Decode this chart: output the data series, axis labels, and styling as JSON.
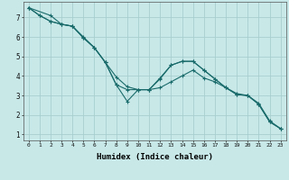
{
  "title": "",
  "xlabel": "Humidex (Indice chaleur)",
  "bg_color": "#c8e8e8",
  "grid_color": "#a8cece",
  "line_color": "#1a6b6b",
  "xlim": [
    -0.5,
    23.5
  ],
  "ylim": [
    0.7,
    7.8
  ],
  "xticks": [
    0,
    1,
    2,
    3,
    4,
    5,
    6,
    7,
    8,
    9,
    10,
    11,
    12,
    13,
    14,
    15,
    16,
    17,
    18,
    19,
    20,
    21,
    22,
    23
  ],
  "yticks": [
    1,
    2,
    3,
    4,
    5,
    6,
    7
  ],
  "line1_x": [
    0,
    1,
    2,
    3,
    4,
    5,
    6,
    7,
    8,
    9,
    10,
    11,
    12,
    13,
    14,
    15,
    16,
    17,
    18,
    19,
    20,
    21,
    22,
    23
  ],
  "line1_y": [
    7.5,
    7.1,
    6.8,
    6.65,
    6.55,
    5.95,
    5.45,
    4.7,
    3.55,
    3.3,
    3.3,
    3.3,
    3.9,
    4.55,
    4.75,
    4.75,
    4.3,
    3.85,
    3.4,
    3.05,
    3.0,
    2.55,
    1.65,
    1.3
  ],
  "line2_x": [
    0,
    2,
    3,
    4,
    5,
    6,
    7,
    8,
    9,
    10,
    11,
    12,
    13,
    14,
    15,
    16,
    17,
    18,
    19,
    20,
    21,
    22,
    23
  ],
  "line2_y": [
    7.5,
    7.1,
    6.65,
    6.55,
    6.0,
    5.45,
    4.7,
    3.55,
    2.7,
    3.3,
    3.3,
    3.85,
    4.55,
    4.75,
    4.75,
    4.3,
    3.85,
    3.4,
    3.05,
    3.0,
    2.55,
    1.65,
    1.3
  ],
  "line3_x": [
    0,
    1,
    2,
    3,
    4,
    5,
    6,
    7,
    8,
    9,
    10,
    11,
    12,
    13,
    14,
    15,
    16,
    17,
    18,
    19,
    20,
    21,
    22,
    23
  ],
  "line3_y": [
    7.5,
    7.1,
    6.8,
    6.65,
    6.55,
    5.95,
    5.45,
    4.7,
    3.95,
    3.45,
    3.3,
    3.3,
    3.4,
    3.7,
    4.0,
    4.3,
    3.9,
    3.7,
    3.4,
    3.1,
    3.0,
    2.6,
    1.7,
    1.3
  ]
}
